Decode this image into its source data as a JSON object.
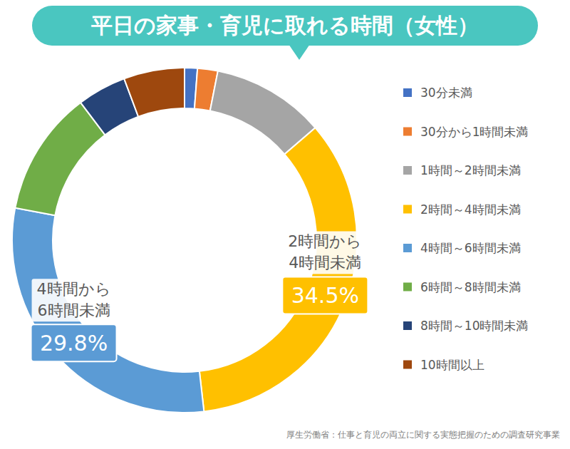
{
  "chart_data": {
    "type": "donut",
    "title": "平日の家事・育児に取れる時間（女性）",
    "categories": [
      "30分未満",
      "30分から1時間未満",
      "1時間～2時間未満",
      "2時間～4時間未満",
      "4時間～6時間未満",
      "6時間～8時間未満",
      "8時間～10時間未満",
      "10時間以上"
    ],
    "values": [
      1.2,
      1.9,
      10.6,
      34.5,
      29.8,
      11.7,
      4.6,
      5.7
    ],
    "colors": [
      "#4472c4",
      "#ed7d31",
      "#a5a5a5",
      "#ffc000",
      "#5b9bd5",
      "#70ad47",
      "#264478",
      "#9e480e"
    ],
    "value_labels": [
      null,
      null,
      null,
      "34.5%",
      "29.8%",
      null,
      null,
      null
    ],
    "slice_labels": [
      null,
      null,
      null,
      [
        "2時間から",
        "4時間未満"
      ],
      [
        "4時間から",
        "6時間未満"
      ],
      null,
      null,
      null
    ],
    "legend": "right",
    "source": "厚生労働省：仕事と育児の両立に関する実態把握のための調査研究事業"
  }
}
